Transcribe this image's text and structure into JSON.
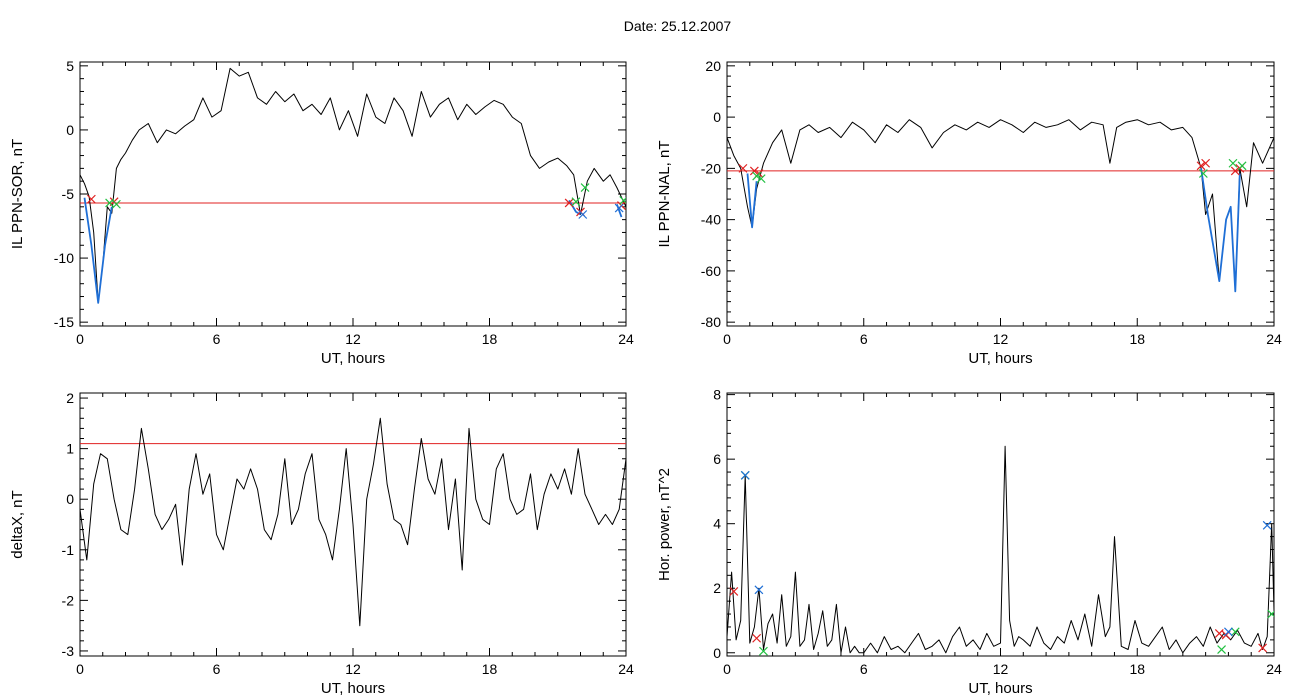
{
  "page": {
    "title": "Date:  25.12.2007"
  },
  "chart_data": [
    {
      "id": "p1",
      "type": "line",
      "title": "",
      "xlabel": "UT, hours",
      "ylabel": "IL PPN-SOR, nT",
      "xlim": [
        0,
        24
      ],
      "ylim": [
        -15.3,
        5.3
      ],
      "xticks": [
        0,
        6,
        12,
        18,
        24
      ],
      "yticks": [
        -15,
        -10,
        -5,
        0,
        5
      ],
      "threshold": -5.7,
      "series": [
        {
          "color": "#000000",
          "x": [
            0,
            0.2,
            0.4,
            0.6,
            0.8,
            1.0,
            1.2,
            1.4,
            1.6,
            1.8,
            2.0,
            2.3,
            2.6,
            3.0,
            3.4,
            3.8,
            4.2,
            4.6,
            5.0,
            5.4,
            5.8,
            6.2,
            6.6,
            7.0,
            7.4,
            7.8,
            8.2,
            8.6,
            9.0,
            9.4,
            9.8,
            10.2,
            10.6,
            11.0,
            11.4,
            11.8,
            12.2,
            12.6,
            13.0,
            13.4,
            13.8,
            14.2,
            14.6,
            15.0,
            15.4,
            15.8,
            16.2,
            16.6,
            17.0,
            17.4,
            17.8,
            18.2,
            18.6,
            19.0,
            19.4,
            19.8,
            20.2,
            20.6,
            21.0,
            21.4,
            21.7,
            22.0,
            22.3,
            22.6,
            23.0,
            23.3,
            23.6,
            24.0
          ],
          "y": [
            -3.5,
            -4.2,
            -5.2,
            -8.0,
            -13.5,
            -10.5,
            -6.0,
            -6.5,
            -3.0,
            -2.3,
            -1.8,
            -0.8,
            0.0,
            0.5,
            -1.0,
            0.0,
            -0.3,
            0.3,
            0.8,
            2.5,
            1.0,
            1.5,
            4.8,
            4.2,
            4.5,
            2.5,
            2.0,
            3.0,
            2.2,
            2.8,
            1.5,
            2.0,
            1.2,
            2.5,
            0.0,
            1.5,
            -0.5,
            2.8,
            1.0,
            0.5,
            2.5,
            1.5,
            -0.5,
            3.0,
            1.0,
            2.0,
            2.5,
            0.8,
            2.0,
            1.2,
            1.8,
            2.3,
            2.0,
            1.0,
            0.5,
            -2.0,
            -3.0,
            -2.5,
            -2.2,
            -2.8,
            -3.5,
            -6.6,
            -4.0,
            -3.0,
            -4.0,
            -3.5,
            -4.5,
            -6.0
          ]
        },
        {
          "color": "#1f6fd6",
          "x": [
            0.2,
            0.5,
            0.8,
            1.1,
            1.4
          ],
          "y": [
            -5.3,
            -9.0,
            -13.5,
            -9.0,
            -6.0
          ]
        },
        {
          "color": "#1f6fd6",
          "x": [
            21.5,
            21.8,
            22.0
          ],
          "y": [
            -5.5,
            -6.4,
            -6.6
          ]
        },
        {
          "color": "#1f6fd6",
          "x": [
            23.6,
            23.8
          ],
          "y": [
            -5.8,
            -6.8
          ]
        }
      ],
      "markers": [
        {
          "color": "#e02020",
          "x": [
            0.5,
            1.5,
            21.5,
            22.0,
            23.8
          ],
          "y": [
            -5.4,
            -5.6,
            -5.7,
            -6.4,
            -5.9
          ]
        },
        {
          "color": "#20c040",
          "x": [
            1.3,
            1.6,
            21.8,
            22.2,
            23.9
          ],
          "y": [
            -5.7,
            -5.8,
            -5.6,
            -4.5,
            -5.5
          ]
        },
        {
          "color": "#1f6fd6",
          "x": [
            22.1,
            23.7
          ],
          "y": [
            -6.6,
            -6.1
          ]
        }
      ]
    },
    {
      "id": "p2",
      "type": "line",
      "title": "",
      "xlabel": "UT, hours",
      "ylabel": "IL PPN-NAL, nT",
      "xlim": [
        0,
        24
      ],
      "ylim": [
        -81.5,
        21.5
      ],
      "xticks": [
        0,
        6,
        12,
        18,
        24
      ],
      "yticks": [
        -80,
        -60,
        -40,
        -20,
        0,
        20
      ],
      "threshold": -21,
      "series": [
        {
          "color": "#000000",
          "x": [
            0,
            0.3,
            0.6,
            0.9,
            1.1,
            1.3,
            1.6,
            2.0,
            2.4,
            2.8,
            3.2,
            3.6,
            4.0,
            4.5,
            5.0,
            5.5,
            6.0,
            6.5,
            7.0,
            7.5,
            8.0,
            8.5,
            9.0,
            9.5,
            10.0,
            10.5,
            11.0,
            11.5,
            12.0,
            12.5,
            13.0,
            13.5,
            14.0,
            14.5,
            15.0,
            15.5,
            16.0,
            16.5,
            16.8,
            17.1,
            17.5,
            18.0,
            18.5,
            19.0,
            19.5,
            20.0,
            20.4,
            20.8,
            21.0,
            21.3,
            21.6,
            21.9,
            22.1,
            22.3,
            22.5,
            22.8,
            23.1,
            23.5,
            24.0
          ],
          "y": [
            -8,
            -15,
            -20,
            -35,
            -43,
            -28,
            -18,
            -10,
            -5,
            -18,
            -5,
            -3,
            -6,
            -4,
            -8,
            -2,
            -5,
            -10,
            -3,
            -6,
            -1,
            -4,
            -12,
            -6,
            -3,
            -5,
            -2,
            -4,
            -1,
            -3,
            -6,
            -2,
            -4,
            -3,
            -1,
            -5,
            -2,
            -3,
            -18,
            -4,
            -2,
            -1,
            -3,
            -2,
            -5,
            -4,
            -8,
            -20,
            -38,
            -30,
            -64,
            -40,
            -35,
            -68,
            -20,
            -35,
            -10,
            -18,
            -8
          ]
        },
        {
          "color": "#1f6fd6",
          "x": [
            0.9,
            1.1,
            1.3
          ],
          "y": [
            -22,
            -43,
            -25
          ]
        },
        {
          "color": "#1f6fd6",
          "x": [
            20.8,
            21.1,
            21.6,
            21.9,
            22.1,
            22.3,
            22.5
          ],
          "y": [
            -20,
            -38,
            -64,
            -40,
            -35,
            -68,
            -22
          ]
        }
      ],
      "markers": [
        {
          "color": "#e02020",
          "x": [
            0.7,
            1.2,
            1.4,
            20.8,
            21.0,
            22.3,
            22.5
          ],
          "y": [
            -20,
            -21,
            -22,
            -19,
            -18,
            -21,
            -20
          ]
        },
        {
          "color": "#20c040",
          "x": [
            1.3,
            1.5,
            20.9,
            22.2,
            22.6
          ],
          "y": [
            -23,
            -24,
            -22,
            -18,
            -19
          ]
        }
      ]
    },
    {
      "id": "p3",
      "type": "line",
      "title": "",
      "xlabel": "UT, hours",
      "ylabel": "deltaX, nT",
      "xlim": [
        0,
        24
      ],
      "ylim": [
        -3.1,
        2.1
      ],
      "xticks": [
        0,
        6,
        12,
        18,
        24
      ],
      "yticks": [
        -3,
        -2,
        -1,
        0,
        1,
        2
      ],
      "threshold": 1.1,
      "series": [
        {
          "color": "#000000",
          "x": [
            0,
            0.3,
            0.6,
            0.9,
            1.2,
            1.5,
            1.8,
            2.1,
            2.4,
            2.7,
            3.0,
            3.3,
            3.6,
            3.9,
            4.2,
            4.5,
            4.8,
            5.1,
            5.4,
            5.7,
            6.0,
            6.3,
            6.6,
            6.9,
            7.2,
            7.5,
            7.8,
            8.1,
            8.4,
            8.7,
            9.0,
            9.3,
            9.6,
            9.9,
            10.2,
            10.5,
            10.8,
            11.1,
            11.4,
            11.7,
            12.0,
            12.3,
            12.6,
            12.9,
            13.2,
            13.5,
            13.8,
            14.1,
            14.4,
            14.7,
            15.0,
            15.3,
            15.6,
            15.9,
            16.2,
            16.5,
            16.8,
            17.1,
            17.4,
            17.7,
            18.0,
            18.3,
            18.6,
            18.9,
            19.2,
            19.5,
            19.8,
            20.1,
            20.4,
            20.7,
            21.0,
            21.3,
            21.6,
            21.9,
            22.2,
            22.5,
            22.8,
            23.1,
            23.4,
            23.7,
            24.0
          ],
          "y": [
            -0.2,
            -1.2,
            0.3,
            0.9,
            0.8,
            0.0,
            -0.6,
            -0.7,
            0.2,
            1.4,
            0.6,
            -0.3,
            -0.6,
            -0.4,
            -0.1,
            -1.3,
            0.2,
            0.9,
            0.1,
            0.5,
            -0.7,
            -1.0,
            -0.3,
            0.4,
            0.2,
            0.6,
            0.2,
            -0.6,
            -0.8,
            -0.3,
            0.8,
            -0.5,
            -0.2,
            0.5,
            0.9,
            -0.4,
            -0.7,
            -1.2,
            -0.2,
            1.0,
            -0.5,
            -2.5,
            0.0,
            0.7,
            1.6,
            0.3,
            -0.4,
            -0.5,
            -0.9,
            0.2,
            1.2,
            0.4,
            0.1,
            0.8,
            -0.6,
            0.4,
            -1.4,
            1.4,
            0.0,
            -0.4,
            -0.5,
            0.6,
            0.9,
            0.0,
            -0.3,
            -0.2,
            0.5,
            -0.6,
            0.1,
            0.5,
            0.2,
            0.6,
            0.1,
            1.0,
            0.1,
            -0.2,
            -0.5,
            -0.3,
            -0.5,
            -0.2,
            0.8
          ]
        }
      ],
      "markers": []
    },
    {
      "id": "p4",
      "type": "line",
      "title": "",
      "xlabel": "UT, hours",
      "ylabel": "Hor. power, nT^2",
      "xlim": [
        0,
        24
      ],
      "ylim": [
        -0.1,
        8.05
      ],
      "xticks": [
        0,
        6,
        12,
        18,
        24
      ],
      "yticks": [
        0,
        2,
        4,
        6,
        8
      ],
      "threshold": null,
      "series": [
        {
          "color": "#000000",
          "x": [
            0,
            0.2,
            0.4,
            0.6,
            0.8,
            1.0,
            1.2,
            1.4,
            1.6,
            1.8,
            2.0,
            2.2,
            2.4,
            2.6,
            2.8,
            3.0,
            3.2,
            3.4,
            3.6,
            3.8,
            4.0,
            4.2,
            4.4,
            4.6,
            4.8,
            5.0,
            5.2,
            5.4,
            5.6,
            5.8,
            6.0,
            6.3,
            6.6,
            6.9,
            7.2,
            7.5,
            7.8,
            8.1,
            8.4,
            8.7,
            9.0,
            9.3,
            9.6,
            9.9,
            10.2,
            10.5,
            10.8,
            11.1,
            11.4,
            11.7,
            12.0,
            12.2,
            12.4,
            12.6,
            12.8,
            13.0,
            13.3,
            13.6,
            13.9,
            14.2,
            14.5,
            14.8,
            15.1,
            15.4,
            15.7,
            16.0,
            16.3,
            16.6,
            16.8,
            17.0,
            17.3,
            17.6,
            17.9,
            18.2,
            18.5,
            18.8,
            19.1,
            19.4,
            19.7,
            20.0,
            20.3,
            20.6,
            20.9,
            21.2,
            21.5,
            21.8,
            22.1,
            22.4,
            22.7,
            23.0,
            23.3,
            23.5,
            23.7,
            23.9,
            24.0
          ],
          "y": [
            0.5,
            2.5,
            0.4,
            1.0,
            5.5,
            0.3,
            0.8,
            2.0,
            0.1,
            0.9,
            1.2,
            0.3,
            1.8,
            0.2,
            0.5,
            2.5,
            0.2,
            0.4,
            1.5,
            0.1,
            0.6,
            1.3,
            0.2,
            0.4,
            1.5,
            0.0,
            0.8,
            0.0,
            0.2,
            0.0,
            0.0,
            0.3,
            0.0,
            0.5,
            0.1,
            0.2,
            0.0,
            0.3,
            0.6,
            0.1,
            0.2,
            0.4,
            0.0,
            0.5,
            0.8,
            0.2,
            0.4,
            0.1,
            0.6,
            0.2,
            0.3,
            6.4,
            1.0,
            0.2,
            0.5,
            0.4,
            0.2,
            0.8,
            0.3,
            0.1,
            0.5,
            0.3,
            1.0,
            0.4,
            1.2,
            0.2,
            1.8,
            0.5,
            0.8,
            3.6,
            0.2,
            0.1,
            1.0,
            0.3,
            0.2,
            0.5,
            0.8,
            0.1,
            0.4,
            0.0,
            0.3,
            0.5,
            0.2,
            0.8,
            0.3,
            0.6,
            0.4,
            0.7,
            0.3,
            0.2,
            0.6,
            0.1,
            0.5,
            4.0,
            1.3
          ]
        }
      ],
      "markers": [
        {
          "color": "#e02020",
          "x": [
            0.3,
            1.3,
            21.6,
            21.9,
            23.5
          ],
          "y": [
            1.9,
            0.45,
            0.6,
            0.55,
            0.15
          ]
        },
        {
          "color": "#20c040",
          "x": [
            0.8,
            1.6,
            21.7,
            22.3,
            23.9
          ],
          "y": [
            5.5,
            0.05,
            0.1,
            0.65,
            1.2
          ]
        },
        {
          "color": "#1f6fd6",
          "x": [
            0.8,
            1.4,
            22.0,
            23.7
          ],
          "y": [
            5.5,
            1.95,
            0.65,
            3.95
          ]
        }
      ]
    }
  ]
}
